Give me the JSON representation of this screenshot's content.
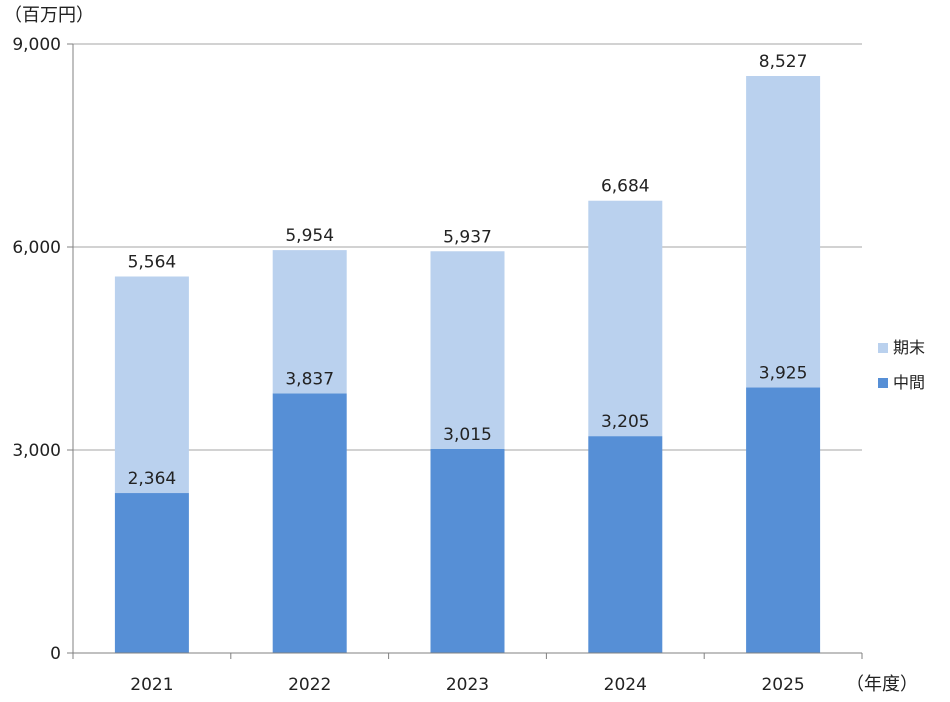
{
  "chart_data": {
    "type": "bar",
    "stacked": true,
    "categories": [
      "2021",
      "2022",
      "2023",
      "2024",
      "2025"
    ],
    "series": [
      {
        "name": "中間",
        "values": [
          2364,
          3837,
          3015,
          3205,
          3925
        ],
        "labels": [
          "2,364",
          "3,837",
          "3,015",
          "3,205",
          "3,925"
        ],
        "color": "#568fd6"
      },
      {
        "name": "期末",
        "totals": [
          5564,
          5954,
          5937,
          6684,
          8527
        ],
        "total_labels": [
          "5,564",
          "5,954",
          "5,937",
          "6,684",
          "8,527"
        ],
        "color": "#bad1ee"
      }
    ],
    "y_unit": "（百万円）",
    "x_unit": "（年度）",
    "ylim": [
      0,
      9000
    ],
    "yticks": [
      0,
      3000,
      6000,
      9000
    ],
    "ytick_labels": [
      "0",
      "3,000",
      "6,000",
      "9,000"
    ],
    "grid": true,
    "legend_position": "right"
  }
}
